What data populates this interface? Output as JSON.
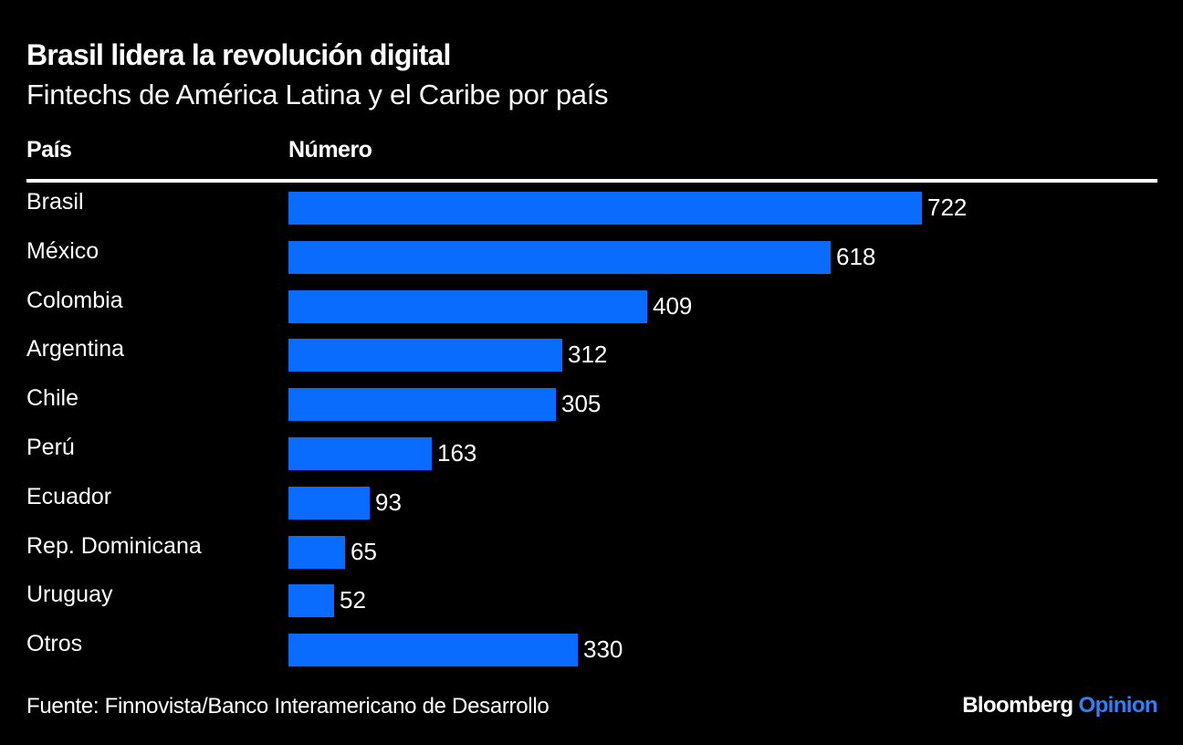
{
  "chart_data": {
    "type": "bar",
    "orientation": "horizontal",
    "title": "Brasil lidera la revolución digital",
    "subtitle": "Fintechs de América Latina y el Caribe por país",
    "xlabel": "Número",
    "ylabel": "País",
    "categories": [
      "Brasil",
      "México",
      "Colombia",
      "Argentina",
      "Chile",
      "Perú",
      "Ecuador",
      "Rep. Dominicana",
      "Uruguay",
      "Otros"
    ],
    "values": [
      722,
      618,
      409,
      312,
      305,
      163,
      93,
      65,
      52,
      330
    ],
    "value_labels": [
      "722",
      "618",
      "409",
      "312",
      "305",
      "163",
      "93",
      "65",
      "52",
      "330"
    ],
    "xlim": [
      0,
      722
    ],
    "grid": false,
    "legend": "none",
    "bar_color": "#0a6cff"
  },
  "header": {
    "title": "Brasil lidera la revolución digital",
    "subtitle": "Fintechs de América Latina y el Caribe por país",
    "col_country": "País",
    "col_number": "Número"
  },
  "footer": {
    "source": "Fuente: Finnovista/Banco Interamericano de Desarrollo",
    "brand_main": "Bloomberg",
    "brand_accent": "Opinion"
  },
  "colors": {
    "background": "#000000",
    "bar": "#0a6cff",
    "brand_accent": "#2f7fff",
    "text": "#ffffff"
  }
}
